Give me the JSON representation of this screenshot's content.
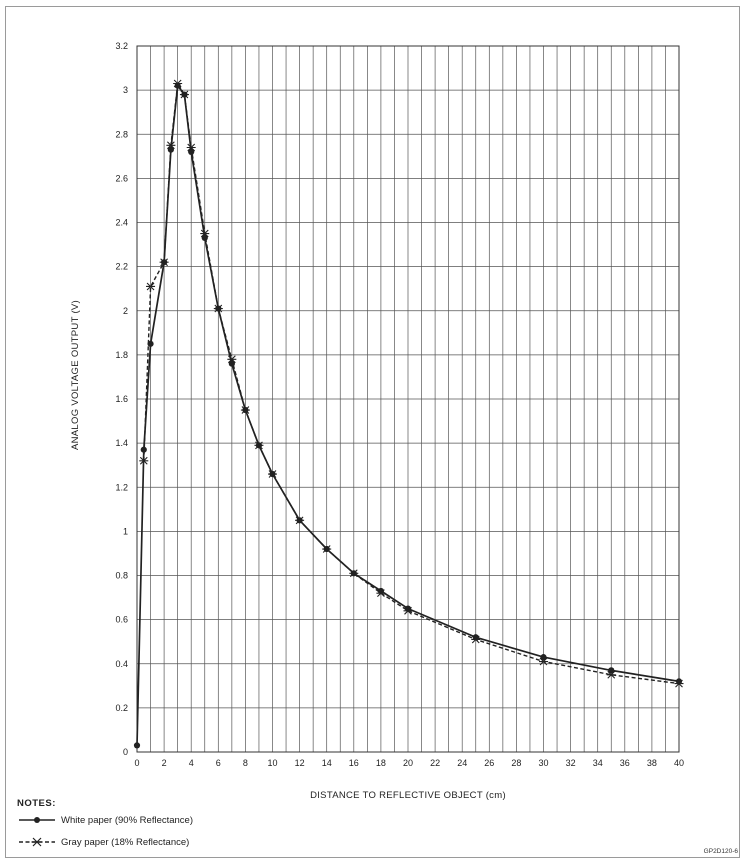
{
  "figure_id": "GP2D120-6",
  "notes_title": "NOTES:",
  "chart_data": {
    "type": "line",
    "xlabel": "DISTANCE TO REFLECTIVE OBJECT (cm)",
    "ylabel": "ANALOG VOLTAGE OUTPUT (V)",
    "xlim": [
      0,
      40
    ],
    "ylim": [
      0,
      3.2
    ],
    "x_grid_lines": [
      0,
      1,
      2,
      3,
      4,
      5,
      6,
      7,
      8,
      9,
      10,
      11,
      12,
      13,
      14,
      15,
      16,
      17,
      18,
      19,
      20,
      21,
      22,
      23,
      24,
      25,
      26,
      27,
      28,
      29,
      30,
      31,
      32,
      33,
      34,
      35,
      36,
      37,
      38,
      39,
      40
    ],
    "x_ticks": [
      0,
      2,
      4,
      6,
      8,
      10,
      12,
      14,
      16,
      18,
      20,
      22,
      24,
      26,
      28,
      30,
      32,
      34,
      36,
      38,
      40
    ],
    "x_tick_labels": [
      "0",
      "2",
      "4",
      "6",
      "8",
      "10",
      "12",
      "14",
      "16",
      "18",
      "20",
      "22",
      "24",
      "26",
      "28",
      "30",
      "32",
      "34",
      "36",
      "38",
      "40"
    ],
    "y_ticks": [
      0,
      0.2,
      0.4,
      0.6,
      0.8,
      1,
      1.2,
      1.4,
      1.6,
      1.8,
      2,
      2.2,
      2.4,
      2.6,
      2.8,
      3,
      3.2
    ],
    "y_tick_labels": [
      "0",
      "0.2",
      "0.4",
      "0.6",
      "0.8",
      "1",
      "1.2",
      "1.4",
      "1.6",
      "1.8",
      "2",
      "2.2",
      "2.4",
      "2.6",
      "2.8",
      "3",
      "3.2"
    ],
    "grid": true,
    "legend_placement": "bottom-left below chart",
    "series": [
      {
        "name": "White paper (90% Reflectance)",
        "line_style": "solid",
        "marker": "filled-circle",
        "color": "#222222",
        "x": [
          0,
          0.5,
          1,
          2,
          2.5,
          3,
          3.5,
          4,
          5,
          6,
          7,
          8,
          9,
          10,
          12,
          14,
          16,
          18,
          20,
          25,
          30,
          35,
          40
        ],
        "y": [
          0.03,
          1.37,
          1.85,
          2.22,
          2.73,
          3.02,
          2.98,
          2.72,
          2.33,
          2.01,
          1.76,
          1.55,
          1.39,
          1.26,
          1.05,
          0.92,
          0.81,
          0.73,
          0.65,
          0.52,
          0.43,
          0.37,
          0.32
        ]
      },
      {
        "name": "Gray paper (18% Reflectance)",
        "line_style": "dashed",
        "marker": "star-cross",
        "color": "#222222",
        "x": [
          0.5,
          1,
          2,
          2.5,
          3,
          3.5,
          4,
          5,
          6,
          7,
          8,
          9,
          10,
          12,
          14,
          16,
          18,
          20,
          25,
          30,
          35,
          40
        ],
        "y": [
          1.32,
          2.11,
          2.22,
          2.75,
          3.03,
          2.98,
          2.74,
          2.35,
          2.01,
          1.78,
          1.55,
          1.39,
          1.26,
          1.05,
          0.92,
          0.81,
          0.72,
          0.64,
          0.51,
          0.41,
          0.35,
          0.31
        ]
      }
    ]
  }
}
